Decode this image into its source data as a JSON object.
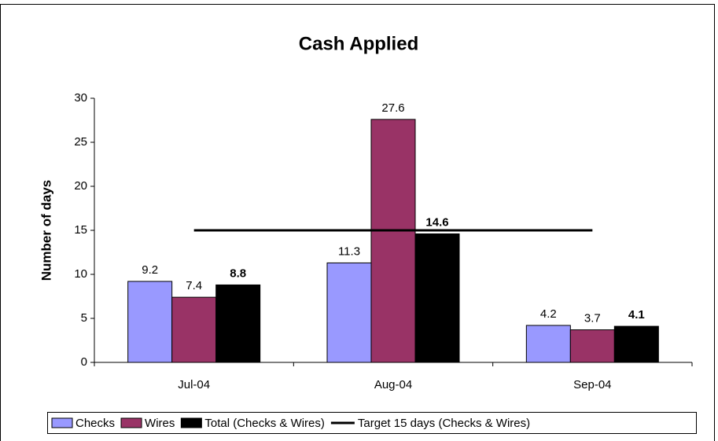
{
  "chart_data": {
    "type": "bar",
    "title": "Cash Applied",
    "y_label": "Number of days",
    "categories": [
      "Jul-04",
      "Aug-04",
      "Sep-04"
    ],
    "series": [
      {
        "name": "Checks",
        "type": "bar",
        "color": "#9999ff",
        "values": [
          9.2,
          11.3,
          4.2
        ]
      },
      {
        "name": "Wires",
        "type": "bar",
        "color": "#993366",
        "values": [
          7.4,
          27.6,
          3.7
        ]
      },
      {
        "name": "Total (Checks & Wires)",
        "type": "bar",
        "color": "#000000",
        "bold_labels": true,
        "values": [
          8.8,
          14.6,
          4.1
        ]
      },
      {
        "name": "Target 15 days (Checks & Wires)",
        "type": "line",
        "color": "#000000",
        "values": [
          15,
          15,
          15
        ]
      }
    ],
    "ylim": [
      0,
      30
    ],
    "yticks": [
      0,
      5,
      10,
      15,
      20,
      25,
      30
    ],
    "grid": false,
    "legend": "bottom"
  }
}
